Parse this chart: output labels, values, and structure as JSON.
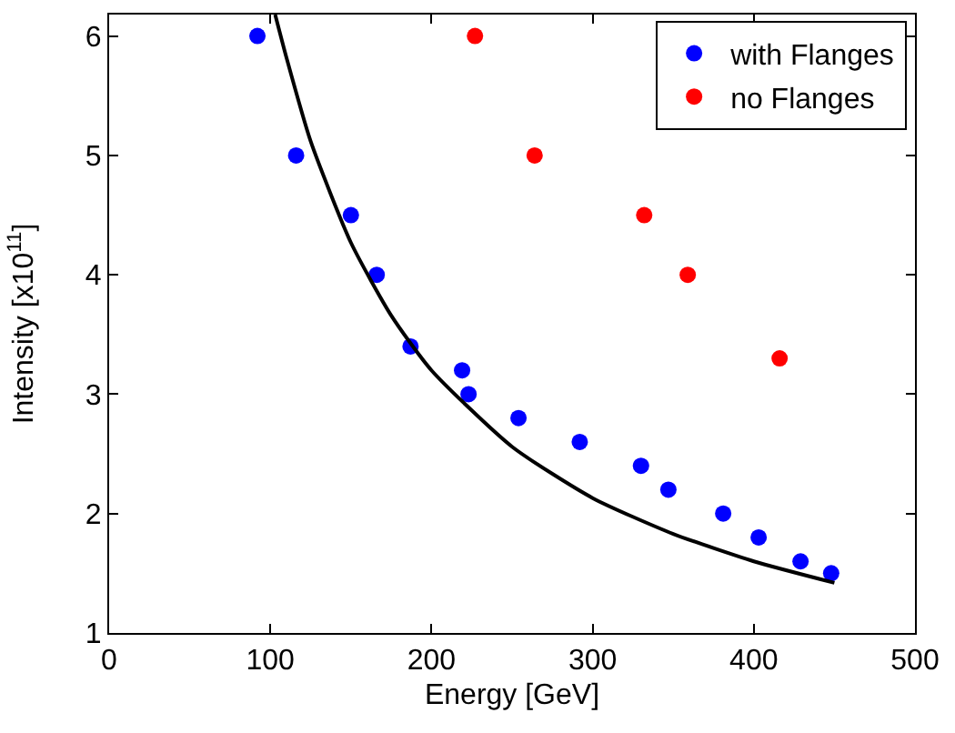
{
  "chart_data": {
    "type": "scatter",
    "xlabel": "Energy [GeV]",
    "ylabel": "Intensity [x10$^{11}$]",
    "xlim": [
      0,
      500
    ],
    "xticks": [
      0,
      100,
      200,
      300,
      400,
      500
    ],
    "ylim": [
      1,
      6.18
    ],
    "yticks": [
      1,
      2,
      3,
      4,
      5,
      6
    ],
    "grid": false,
    "legend": "top right",
    "marker": "circle",
    "series": [
      {
        "name": "with Flanges",
        "color": "#0000ff",
        "x": [
          92,
          116,
          150,
          166,
          187,
          219,
          223,
          254,
          292,
          330,
          347,
          381,
          403,
          429,
          448
        ],
        "values": [
          6,
          5,
          4.5,
          4,
          3.4,
          3.2,
          3,
          2.8,
          2.6,
          2.4,
          2.2,
          2,
          1.8,
          1.6,
          1.5
        ]
      },
      {
        "name": "no Flanges",
        "color": "#ff0000",
        "x": [
          227,
          264,
          332,
          359,
          416
        ],
        "values": [
          6,
          5,
          4.5,
          4,
          3.3
        ]
      },
      {
        "type": "line",
        "color": "#000000",
        "marker": "none",
        "line_style": "solid",
        "x": [
          103,
          110,
          125,
          150,
          175,
          200,
          250,
          300,
          350,
          400,
          450
        ],
        "values": [
          6.18,
          5.82,
          5.12,
          4.27,
          3.66,
          3.2,
          2.56,
          2.13,
          1.83,
          1.6,
          1.42
        ]
      }
    ]
  }
}
